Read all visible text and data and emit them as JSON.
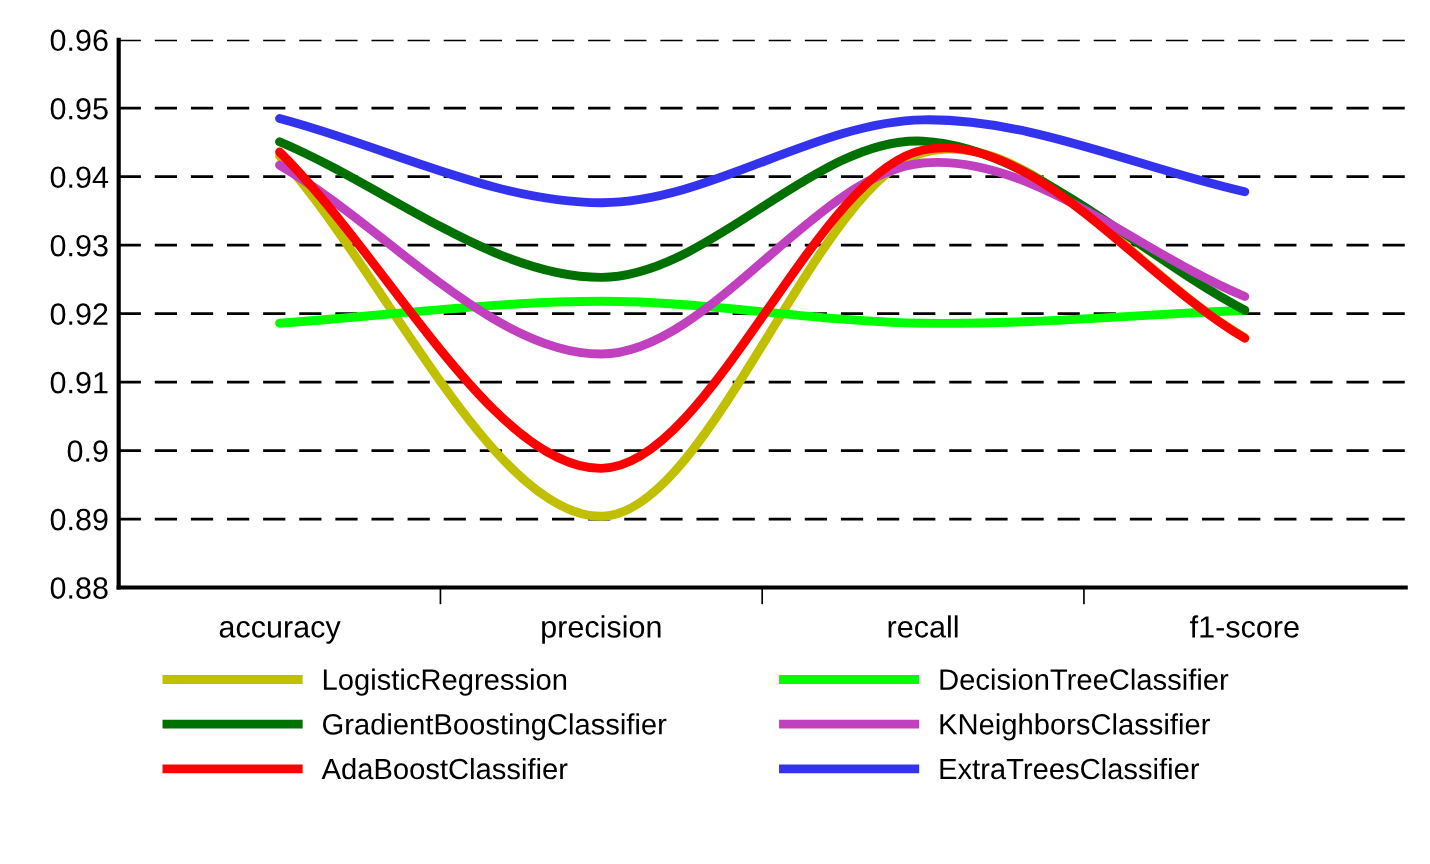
{
  "chart_data": {
    "type": "line",
    "categories": [
      "accuracy",
      "precision",
      "recall",
      "f1-score"
    ],
    "series": [
      {
        "name": "LogisticRegression",
        "color": "#c0c000",
        "values": [
          0.943,
          0.8904,
          0.9435,
          0.9165
        ]
      },
      {
        "name": "DecisionTreeClassifier",
        "color": "#00ff00",
        "values": [
          0.9186,
          0.9218,
          0.9186,
          0.9205
        ]
      },
      {
        "name": "GradientBoostingClassifier",
        "color": "#007000",
        "values": [
          0.9451,
          0.9253,
          0.9452,
          0.9205
        ]
      },
      {
        "name": "KNeighborsClassifier",
        "color": "#c040c0",
        "values": [
          0.9417,
          0.9141,
          0.942,
          0.9225
        ]
      },
      {
        "name": "AdaBoostClassifier",
        "color": "#ff0000",
        "values": [
          0.9436,
          0.8974,
          0.9439,
          0.9164
        ]
      },
      {
        "name": "ExtraTreesClassifier",
        "color": "#3333ee",
        "values": [
          0.9485,
          0.9362,
          0.9483,
          0.9378
        ]
      }
    ],
    "ylim": [
      0.88,
      0.96
    ],
    "yticks": [
      0.88,
      0.89,
      0.9,
      0.91,
      0.92,
      0.93,
      0.94,
      0.95,
      0.96
    ],
    "grid": "y",
    "legend": "bottom",
    "marker": "none",
    "line_style": "solid"
  }
}
